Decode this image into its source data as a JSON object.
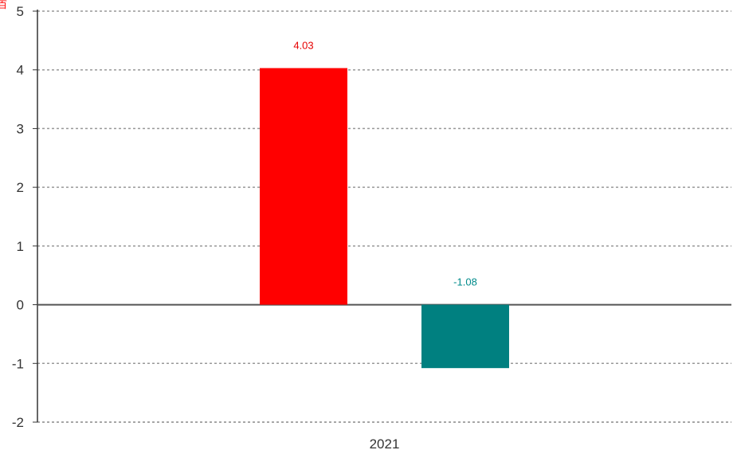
{
  "corner_label": "百",
  "chart_data": {
    "type": "bar",
    "categories": [
      "2021"
    ],
    "series": [
      {
        "values": [
          4.03
        ],
        "color": "#ff0000",
        "label_color": "#e60000"
      },
      {
        "values": [
          -1.08
        ],
        "color": "#008080",
        "label_color": "#008b8b"
      }
    ],
    "data_labels": [
      "4.03",
      "-1.08"
    ],
    "yticks": [
      "5",
      "4",
      "3",
      "2",
      "1",
      "0",
      "-1",
      "-2"
    ],
    "ylim": [
      -2,
      5
    ],
    "grid": true,
    "grid_style": "dashed",
    "title": "",
    "xlabel": "",
    "ylabel": ""
  }
}
